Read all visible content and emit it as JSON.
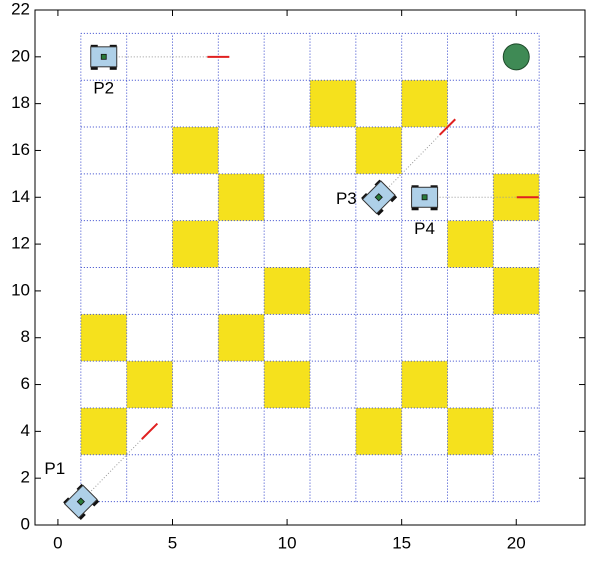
{
  "chart_data": {
    "type": "gridworld",
    "xlim": [
      -1,
      23
    ],
    "ylim": [
      0,
      22
    ],
    "xticks": [
      0,
      5,
      10,
      15,
      20
    ],
    "yticks": [
      0,
      2,
      4,
      6,
      8,
      10,
      12,
      14,
      16,
      18,
      20,
      22
    ],
    "grid": true,
    "grid_x": [
      1,
      3,
      5,
      7,
      9,
      11,
      13,
      15,
      17,
      19,
      21
    ],
    "grid_y": [
      1,
      3,
      5,
      7,
      9,
      11,
      13,
      15,
      17,
      19,
      21
    ],
    "cells": {
      "color": "#f5e11d",
      "x": [
        12,
        16,
        6,
        14,
        8,
        20,
        6,
        18,
        10,
        20,
        2,
        8,
        4,
        10,
        16,
        2,
        14,
        18
      ],
      "y": [
        18,
        18,
        16,
        16,
        14,
        14,
        12,
        12,
        10,
        10,
        8,
        8,
        6,
        6,
        6,
        4,
        4,
        4
      ]
    },
    "robots": {
      "color": "#aed0e8",
      "names": [
        "P1",
        "P2",
        "P3",
        "P4"
      ],
      "x": [
        1,
        2,
        14,
        16
      ],
      "y": [
        1,
        20,
        14,
        14
      ],
      "heading": [
        45,
        0,
        45,
        0
      ],
      "label_side": [
        "above-left",
        "below",
        "left",
        "below"
      ]
    },
    "targets": {
      "color": "#e02020",
      "x": [
        4,
        7,
        17,
        20.5
      ],
      "y": [
        4,
        20,
        17,
        14
      ],
      "heading": [
        45,
        0,
        45,
        0
      ]
    },
    "goal": {
      "color": "#3f8a55",
      "x": 20,
      "y": 20
    }
  }
}
